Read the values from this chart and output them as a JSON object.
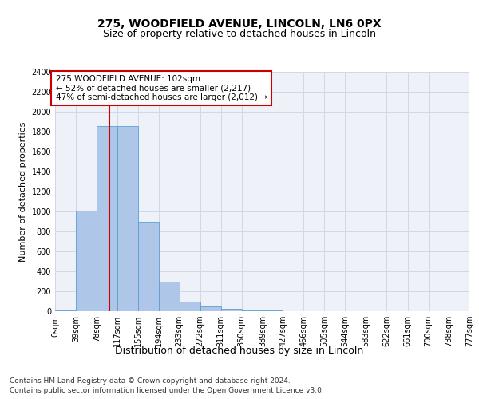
{
  "title": "275, WOODFIELD AVENUE, LINCOLN, LN6 0PX",
  "subtitle": "Size of property relative to detached houses in Lincoln",
  "xlabel": "Distribution of detached houses by size in Lincoln",
  "ylabel": "Number of detached properties",
  "bin_edges": [
    0,
    39,
    78,
    117,
    155,
    194,
    233,
    272,
    311,
    350,
    389,
    427,
    466,
    505,
    544,
    583,
    622,
    661,
    700,
    738,
    777
  ],
  "bin_labels": [
    "0sqm",
    "39sqm",
    "78sqm",
    "117sqm",
    "155sqm",
    "194sqm",
    "233sqm",
    "272sqm",
    "311sqm",
    "350sqm",
    "389sqm",
    "427sqm",
    "466sqm",
    "505sqm",
    "544sqm",
    "583sqm",
    "622sqm",
    "661sqm",
    "700sqm",
    "738sqm",
    "777sqm"
  ],
  "bar_heights": [
    10,
    1005,
    1860,
    1860,
    900,
    300,
    100,
    50,
    25,
    10,
    5,
    3,
    2,
    1,
    1,
    1,
    1,
    1,
    1,
    1
  ],
  "bar_color": "#aec6e8",
  "bar_edgecolor": "#5a9fd4",
  "vline_x": 102,
  "vline_color": "#cc0000",
  "annotation_text": "275 WOODFIELD AVENUE: 102sqm\n← 52% of detached houses are smaller (2,217)\n47% of semi-detached houses are larger (2,012) →",
  "annotation_box_edgecolor": "#cc0000",
  "annotation_box_facecolor": "#ffffff",
  "ylim": [
    0,
    2400
  ],
  "yticks": [
    0,
    200,
    400,
    600,
    800,
    1000,
    1200,
    1400,
    1600,
    1800,
    2000,
    2200,
    2400
  ],
  "grid_color": "#d0d8e8",
  "background_color": "#eef2f8",
  "footer_line1": "Contains HM Land Registry data © Crown copyright and database right 2024.",
  "footer_line2": "Contains public sector information licensed under the Open Government Licence v3.0.",
  "title_fontsize": 10,
  "subtitle_fontsize": 9,
  "axis_label_fontsize": 8,
  "tick_fontsize": 7,
  "annotation_fontsize": 7.5,
  "footer_fontsize": 6.5
}
